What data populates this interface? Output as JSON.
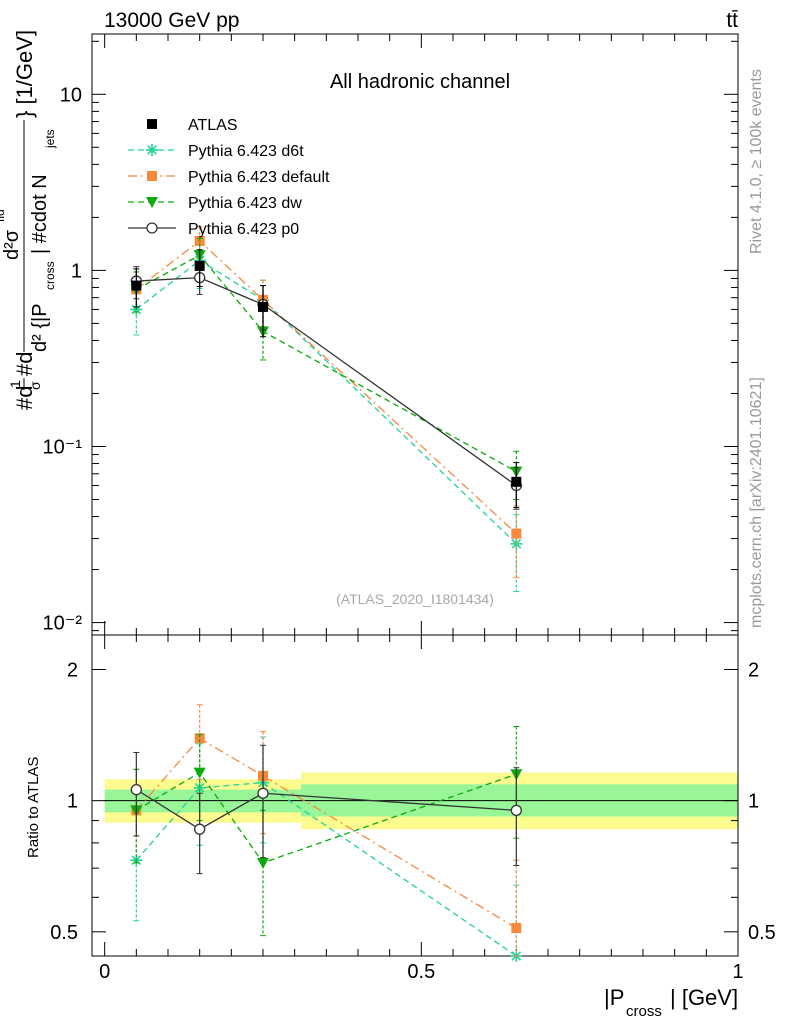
{
  "header": {
    "energy_label": "13000 GeV pp",
    "process_label": "tt̄",
    "rivet_label": "Rivet 4.1.0, ≥ 100k events",
    "mcplots_label": "mcplots.cern.ch [arXiv:2401.10621]"
  },
  "chart_data": [
    {
      "type": "scatter",
      "panel": "main",
      "title": "All hadronic channel",
      "watermark": "(ATLAS_2020_I1801434)",
      "ylabel": "#d¹/#dσ d²σᶦᵈ/d²{|P_cross| #cdot N_jets} [1/GeV]",
      "ylabel_parts": {
        "main": "#d",
        "frac_num": "1",
        "frac_den": "σ",
        "main2": "#d",
        "inner_num": "d²σ",
        "inner_num_sup": "fid",
        "inner_den": "d² {|P",
        "inner_den_sub": "cross",
        "inner_den_rest": "| #cdot N",
        "inner_den_sub2": "jets",
        "tail": "} [1/GeV]"
      },
      "yscale": "log",
      "ylim": [
        0.0085,
        22
      ],
      "xlim": [
        -0.02,
        1.0
      ],
      "yticks": [
        {
          "value": 10,
          "label": "10"
        },
        {
          "value": 1,
          "label": "1"
        },
        {
          "value": 0.1,
          "label": "10⁻¹"
        },
        {
          "value": 0.01,
          "label": "10⁻²"
        }
      ],
      "legend_position": "top-left",
      "series": [
        {
          "name": "ATLAS",
          "style": "data",
          "color": "#000000",
          "marker": "square",
          "x": [
            0.05,
            0.15,
            0.25,
            0.65
          ],
          "y": [
            0.82,
            1.06,
            0.62,
            0.063
          ],
          "yerr": [
            0.2,
            0.25,
            0.2,
            0.018
          ],
          "xerr": [
            0.05,
            0.05,
            0.05,
            0.35
          ]
        },
        {
          "name": "Pythia 6.423 d6t",
          "style": "dash",
          "color": "#22d39a",
          "marker": "star",
          "x": [
            0.05,
            0.15,
            0.25,
            0.65
          ],
          "y": [
            0.6,
            1.14,
            0.68,
            0.028
          ],
          "yerr": [
            0.17,
            0.35,
            0.2,
            0.013
          ]
        },
        {
          "name": "Pythia 6.423 default",
          "style": "dashdot",
          "color": "#f6893a",
          "marker": "square",
          "x": [
            0.05,
            0.15,
            0.25,
            0.65
          ],
          "y": [
            0.78,
            1.47,
            0.68,
            0.032
          ],
          "yerr": [
            0.2,
            0.3,
            0.2,
            0.014
          ]
        },
        {
          "name": "Pythia 6.423 dw",
          "style": "dash",
          "color": "#0aab0a",
          "marker": "triangle-down",
          "x": [
            0.05,
            0.15,
            0.25,
            0.65
          ],
          "y": [
            0.78,
            1.22,
            0.45,
            0.072
          ],
          "yerr": [
            0.2,
            0.3,
            0.14,
            0.022
          ]
        },
        {
          "name": "Pythia 6.423 p0",
          "style": "solid",
          "color": "#333333",
          "marker": "open-circle",
          "x": [
            0.05,
            0.15,
            0.25,
            0.65
          ],
          "y": [
            0.87,
            0.91,
            0.64,
            0.06
          ],
          "yerr": [
            0.18,
            0.18,
            0.18,
            0.016
          ]
        }
      ]
    },
    {
      "type": "scatter",
      "panel": "ratio",
      "xlabel": "|P_cross| [GeV]",
      "xlabel_parts": {
        "main": "|P",
        "sub": "cross",
        "tail": "| [GeV]"
      },
      "ylabel": "Ratio to ATLAS",
      "yscale": "log",
      "ylim": [
        0.44,
        2.4
      ],
      "xlim": [
        -0.02,
        1.0
      ],
      "xticks": [
        {
          "value": 0,
          "label": "0"
        },
        {
          "value": 0.5,
          "label": "0.5"
        },
        {
          "value": 1,
          "label": "1"
        }
      ],
      "yticks": [
        {
          "value": 2,
          "label": "2"
        },
        {
          "value": 1,
          "label": "1"
        },
        {
          "value": 0.5,
          "label": "0.5"
        }
      ],
      "bands": [
        {
          "x0": 0.0,
          "x1": 0.31,
          "stat": [
            0.94,
            1.06
          ],
          "total": [
            0.89,
            1.12
          ]
        },
        {
          "x0": 0.31,
          "x1": 1.0,
          "stat": [
            0.92,
            1.09
          ],
          "total": [
            0.86,
            1.16
          ]
        }
      ],
      "band_colors": {
        "stat": "#98f598",
        "total": "#fbfb8f"
      },
      "series": [
        {
          "name": "Pythia 6.423 d6t",
          "x": [
            0.05,
            0.15,
            0.25,
            0.65
          ],
          "y": [
            0.73,
            1.07,
            1.1,
            0.44
          ],
          "yerr": [
            0.2,
            0.28,
            0.3,
            0.2
          ]
        },
        {
          "name": "Pythia 6.423 default",
          "x": [
            0.05,
            0.15,
            0.25,
            0.65
          ],
          "y": [
            0.95,
            1.39,
            1.14,
            0.51
          ],
          "yerr": [
            0.23,
            0.27,
            0.3,
            0.22
          ]
        },
        {
          "name": "Pythia 6.423 dw",
          "x": [
            0.05,
            0.15,
            0.25,
            0.65
          ],
          "y": [
            0.95,
            1.16,
            0.72,
            1.15
          ],
          "yerr": [
            0.23,
            0.26,
            0.23,
            0.33
          ]
        },
        {
          "name": "Pythia 6.423 p0",
          "x": [
            0.05,
            0.15,
            0.25,
            0.65
          ],
          "y": [
            1.06,
            0.86,
            1.04,
            0.95
          ],
          "yerr": [
            0.23,
            0.18,
            0.3,
            0.24
          ]
        }
      ]
    }
  ]
}
